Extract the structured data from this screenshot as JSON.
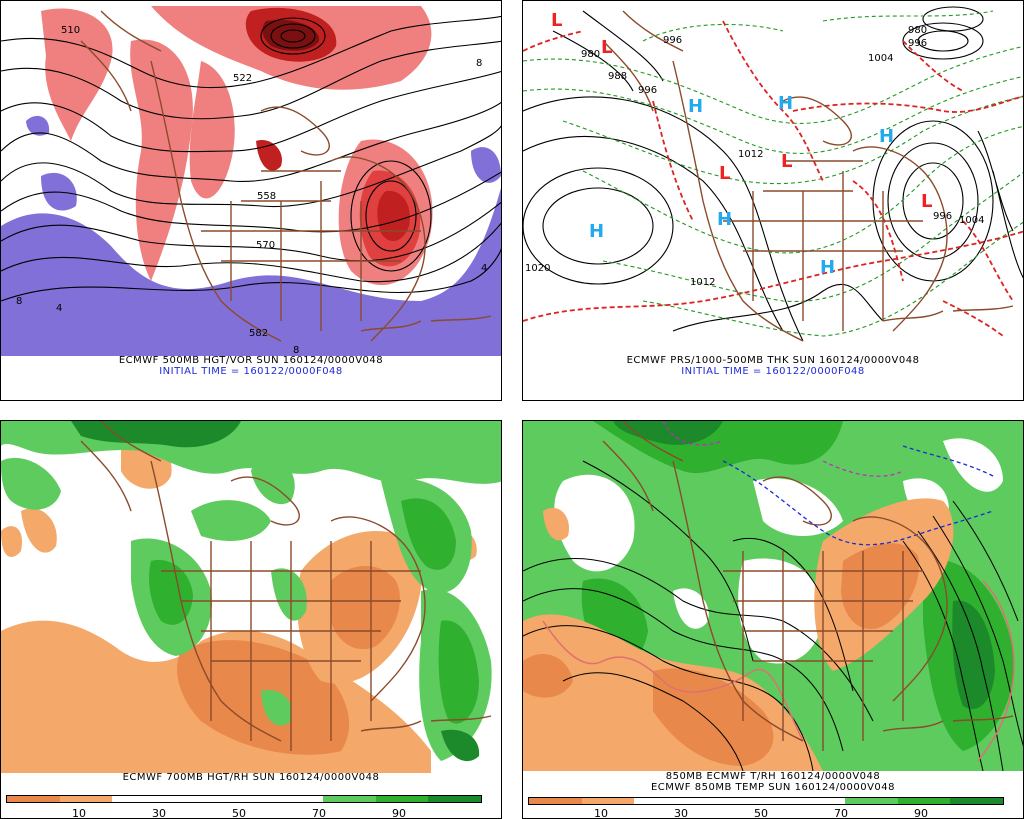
{
  "panels": {
    "p500": {
      "title": "ECMWF 500MB HGT/VOR SUN 160124/0000V048",
      "subtitle": "INITIAL TIME = 160122/0000F048",
      "contour_labels": [
        "510",
        "522",
        "558",
        "570",
        "582",
        "8",
        "4",
        "8",
        "4",
        "8"
      ]
    },
    "prs": {
      "title": "ECMWF PRS/1000-500MB THK SUN 160124/0000V048",
      "subtitle": "INITIAL TIME = 160122/0000F048",
      "contour_labels": [
        "980",
        "988",
        "996",
        "996",
        "1004",
        "1012",
        "1012",
        "1020",
        "1004",
        "996",
        "980",
        "996"
      ],
      "high_label": "H",
      "low_label": "L"
    },
    "rh700": {
      "title": "ECMWF 700MB HGT/RH SUN 160124/0000V048"
    },
    "t850": {
      "title_line1": "850MB ECMWF T/RH 160124/0000V048",
      "title_line2": "ECMWF 850MB TEMP SUN 160124/0000V048"
    }
  },
  "colorbar_rh700": {
    "labels": [
      "10",
      "30",
      "50",
      "70",
      "90"
    ]
  },
  "colorbar_t850": {
    "labels": [
      "10",
      "30",
      "50",
      "70",
      "90"
    ]
  },
  "colors": {
    "dry_dark": "#e8884a",
    "dry_light": "#f4a86a",
    "moist_light": "#5ecb5e",
    "moist_mid": "#2fb02f",
    "moist_dark": "#1c8a2a",
    "vort_red_light": "#f08080",
    "vort_red": "#e04040",
    "vort_red_dark": "#c02020",
    "neg_vort_purple": "#8070d8",
    "borders_brown": "#8b4a2b",
    "high_blue": "#22aaee",
    "low_red": "#ee2222",
    "thickness_green": "#229922",
    "thickness_red": "#dd2222"
  }
}
